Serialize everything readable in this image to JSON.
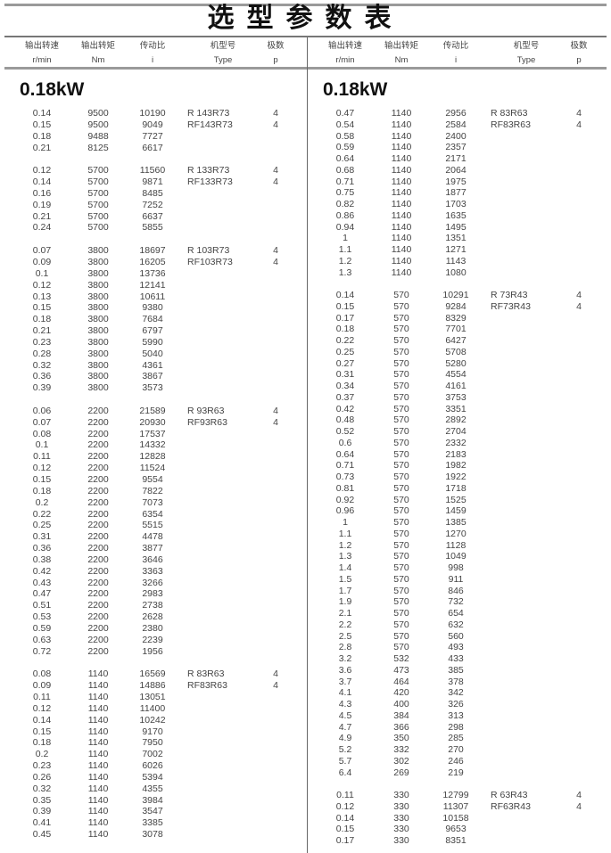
{
  "title": "选型参数表",
  "headers": [
    {
      "cn": "输出转速",
      "en": "r/min"
    },
    {
      "cn": "输出转矩",
      "en": "Nm"
    },
    {
      "cn": "传动比",
      "en": "i"
    },
    {
      "cn": "机型号",
      "en": "Type"
    },
    {
      "cn": "极数",
      "en": "p"
    }
  ],
  "columns": [
    {
      "power": "0.18kW",
      "groups": [
        {
          "rows": [
            [
              "0.14",
              "9500",
              "10190",
              "R 143R73",
              "4"
            ],
            [
              "0.15",
              "9500",
              "9049",
              "RF143R73",
              "4"
            ],
            [
              "0.18",
              "9488",
              "7727",
              "",
              ""
            ],
            [
              "0.21",
              "8125",
              "6617",
              "",
              ""
            ]
          ]
        },
        {
          "rows": [
            [
              "0.12",
              "5700",
              "11560",
              "R 133R73",
              "4"
            ],
            [
              "0.14",
              "5700",
              "9871",
              "RF133R73",
              "4"
            ],
            [
              "0.16",
              "5700",
              "8485",
              "",
              ""
            ],
            [
              "0.19",
              "5700",
              "7252",
              "",
              ""
            ],
            [
              "0.21",
              "5700",
              "6637",
              "",
              ""
            ],
            [
              "0.24",
              "5700",
              "5855",
              "",
              ""
            ]
          ]
        },
        {
          "rows": [
            [
              "0.07",
              "3800",
              "18697",
              "R 103R73",
              "4"
            ],
            [
              "0.09",
              "3800",
              "16205",
              "RF103R73",
              "4"
            ],
            [
              "0.1",
              "3800",
              "13736",
              "",
              ""
            ],
            [
              "0.12",
              "3800",
              "12141",
              "",
              ""
            ],
            [
              "0.13",
              "3800",
              "10611",
              "",
              ""
            ],
            [
              "0.15",
              "3800",
              "9380",
              "",
              ""
            ],
            [
              "0.18",
              "3800",
              "7684",
              "",
              ""
            ],
            [
              "0.21",
              "3800",
              "6797",
              "",
              ""
            ],
            [
              "0.23",
              "3800",
              "5990",
              "",
              ""
            ],
            [
              "0.28",
              "3800",
              "5040",
              "",
              ""
            ],
            [
              "0.32",
              "3800",
              "4361",
              "",
              ""
            ],
            [
              "0.36",
              "3800",
              "3867",
              "",
              ""
            ],
            [
              "0.39",
              "3800",
              "3573",
              "",
              ""
            ]
          ]
        },
        {
          "rows": [
            [
              "0.06",
              "2200",
              "21589",
              "R 93R63",
              "4"
            ],
            [
              "0.07",
              "2200",
              "20930",
              "RF93R63",
              "4"
            ],
            [
              "0.08",
              "2200",
              "17537",
              "",
              ""
            ],
            [
              "0.1",
              "2200",
              "14332",
              "",
              ""
            ],
            [
              "0.11",
              "2200",
              "12828",
              "",
              ""
            ],
            [
              "0.12",
              "2200",
              "11524",
              "",
              ""
            ],
            [
              "0.15",
              "2200",
              "9554",
              "",
              ""
            ],
            [
              "0.18",
              "2200",
              "7822",
              "",
              ""
            ],
            [
              "0.2",
              "2200",
              "7073",
              "",
              ""
            ],
            [
              "0.22",
              "2200",
              "6354",
              "",
              ""
            ],
            [
              "0.25",
              "2200",
              "5515",
              "",
              ""
            ],
            [
              "0.31",
              "2200",
              "4478",
              "",
              ""
            ],
            [
              "0.36",
              "2200",
              "3877",
              "",
              ""
            ],
            [
              "0.38",
              "2200",
              "3646",
              "",
              ""
            ],
            [
              "0.42",
              "2200",
              "3363",
              "",
              ""
            ],
            [
              "0.43",
              "2200",
              "3266",
              "",
              ""
            ],
            [
              "0.47",
              "2200",
              "2983",
              "",
              ""
            ],
            [
              "0.51",
              "2200",
              "2738",
              "",
              ""
            ],
            [
              "0.53",
              "2200",
              "2628",
              "",
              ""
            ],
            [
              "0.59",
              "2200",
              "2380",
              "",
              ""
            ],
            [
              "0.63",
              "2200",
              "2239",
              "",
              ""
            ],
            [
              "0.72",
              "2200",
              "1956",
              "",
              ""
            ]
          ]
        },
        {
          "rows": [
            [
              "0.08",
              "1140",
              "16569",
              "R 83R63",
              "4"
            ],
            [
              "0.09",
              "1140",
              "14886",
              "RF83R63",
              "4"
            ],
            [
              "0.11",
              "1140",
              "13051",
              "",
              ""
            ],
            [
              "0.12",
              "1140",
              "11400",
              "",
              ""
            ],
            [
              "0.14",
              "1140",
              "10242",
              "",
              ""
            ],
            [
              "0.15",
              "1140",
              "9170",
              "",
              ""
            ],
            [
              "0.18",
              "1140",
              "7950",
              "",
              ""
            ],
            [
              "0.2",
              "1140",
              "7002",
              "",
              ""
            ],
            [
              "0.23",
              "1140",
              "6026",
              "",
              ""
            ],
            [
              "0.26",
              "1140",
              "5394",
              "",
              ""
            ],
            [
              "0.32",
              "1140",
              "4355",
              "",
              ""
            ],
            [
              "0.35",
              "1140",
              "3984",
              "",
              ""
            ],
            [
              "0.39",
              "1140",
              "3547",
              "",
              ""
            ],
            [
              "0.41",
              "1140",
              "3385",
              "",
              ""
            ],
            [
              "0.45",
              "1140",
              "3078",
              "",
              ""
            ]
          ]
        }
      ]
    },
    {
      "power": "0.18kW",
      "groups": [
        {
          "rows": [
            [
              "0.47",
              "1140",
              "2956",
              "R 83R63",
              "4"
            ],
            [
              "0.54",
              "1140",
              "2584",
              "RF83R63",
              "4"
            ],
            [
              "0.58",
              "1140",
              "2400",
              "",
              ""
            ],
            [
              "0.59",
              "1140",
              "2357",
              "",
              ""
            ],
            [
              "0.64",
              "1140",
              "2171",
              "",
              ""
            ],
            [
              "0.68",
              "1140",
              "2064",
              "",
              ""
            ],
            [
              "0.71",
              "1140",
              "1975",
              "",
              ""
            ],
            [
              "0.75",
              "1140",
              "1877",
              "",
              ""
            ],
            [
              "0.82",
              "1140",
              "1703",
              "",
              ""
            ],
            [
              "0.86",
              "1140",
              "1635",
              "",
              ""
            ],
            [
              "0.94",
              "1140",
              "1495",
              "",
              ""
            ],
            [
              "1",
              "1140",
              "1351",
              "",
              ""
            ],
            [
              "1.1",
              "1140",
              "1271",
              "",
              ""
            ],
            [
              "1.2",
              "1140",
              "1143",
              "",
              ""
            ],
            [
              "1.3",
              "1140",
              "1080",
              "",
              ""
            ]
          ]
        },
        {
          "rows": [
            [
              "0.14",
              "570",
              "10291",
              "R 73R43",
              "4"
            ],
            [
              "0.15",
              "570",
              "9284",
              "RF73R43",
              "4"
            ],
            [
              "0.17",
              "570",
              "8329",
              "",
              ""
            ],
            [
              "0.18",
              "570",
              "7701",
              "",
              ""
            ],
            [
              "0.22",
              "570",
              "6427",
              "",
              ""
            ],
            [
              "0.25",
              "570",
              "5708",
              "",
              ""
            ],
            [
              "0.27",
              "570",
              "5280",
              "",
              ""
            ],
            [
              "0.31",
              "570",
              "4554",
              "",
              ""
            ],
            [
              "0.34",
              "570",
              "4161",
              "",
              ""
            ],
            [
              "0.37",
              "570",
              "3753",
              "",
              ""
            ],
            [
              "0.42",
              "570",
              "3351",
              "",
              ""
            ],
            [
              "0.48",
              "570",
              "2892",
              "",
              ""
            ],
            [
              "0.52",
              "570",
              "2704",
              "",
              ""
            ],
            [
              "0.6",
              "570",
              "2332",
              "",
              ""
            ],
            [
              "0.64",
              "570",
              "2183",
              "",
              ""
            ],
            [
              "0.71",
              "570",
              "1982",
              "",
              ""
            ],
            [
              "0.73",
              "570",
              "1922",
              "",
              ""
            ],
            [
              "0.81",
              "570",
              "1718",
              "",
              ""
            ],
            [
              "0.92",
              "570",
              "1525",
              "",
              ""
            ],
            [
              "0.96",
              "570",
              "1459",
              "",
              ""
            ],
            [
              "1",
              "570",
              "1385",
              "",
              ""
            ],
            [
              "1.1",
              "570",
              "1270",
              "",
              ""
            ],
            [
              "1.2",
              "570",
              "1128",
              "",
              ""
            ],
            [
              "1.3",
              "570",
              "1049",
              "",
              ""
            ],
            [
              "1.4",
              "570",
              "998",
              "",
              ""
            ],
            [
              "1.5",
              "570",
              "911",
              "",
              ""
            ],
            [
              "1.7",
              "570",
              "846",
              "",
              ""
            ],
            [
              "1.9",
              "570",
              "732",
              "",
              ""
            ],
            [
              "2.1",
              "570",
              "654",
              "",
              ""
            ],
            [
              "2.2",
              "570",
              "632",
              "",
              ""
            ],
            [
              "2.5",
              "570",
              "560",
              "",
              ""
            ],
            [
              "2.8",
              "570",
              "493",
              "",
              ""
            ],
            [
              "3.2",
              "532",
              "433",
              "",
              ""
            ],
            [
              "3.6",
              "473",
              "385",
              "",
              ""
            ],
            [
              "3.7",
              "464",
              "378",
              "",
              ""
            ],
            [
              "4.1",
              "420",
              "342",
              "",
              ""
            ],
            [
              "4.3",
              "400",
              "326",
              "",
              ""
            ],
            [
              "4.5",
              "384",
              "313",
              "",
              ""
            ],
            [
              "4.7",
              "366",
              "298",
              "",
              ""
            ],
            [
              "4.9",
              "350",
              "285",
              "",
              ""
            ],
            [
              "5.2",
              "332",
              "270",
              "",
              ""
            ],
            [
              "5.7",
              "302",
              "246",
              "",
              ""
            ],
            [
              "6.4",
              "269",
              "219",
              "",
              ""
            ]
          ]
        },
        {
          "rows": [
            [
              "0.11",
              "330",
              "12799",
              "R 63R43",
              "4"
            ],
            [
              "0.12",
              "330",
              "11307",
              "RF63R43",
              "4"
            ],
            [
              "0.14",
              "330",
              "10158",
              "",
              ""
            ],
            [
              "0.15",
              "330",
              "9653",
              "",
              ""
            ],
            [
              "0.17",
              "330",
              "8351",
              "",
              ""
            ]
          ]
        }
      ]
    }
  ]
}
